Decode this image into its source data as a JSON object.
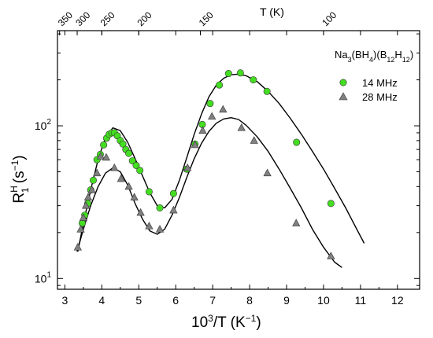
{
  "chart_data": {
    "type": "scatter",
    "title": "Na3(BH4)(B12H12)",
    "title_parts": {
      "base1": "Na",
      "sub1": "3",
      "base2": "(BH",
      "sub2": "4",
      "base3": ")(B",
      "sub3": "12",
      "base4": "H",
      "sub4": "12",
      "base5": ")"
    },
    "xlabel": "10³/T (K⁻¹)",
    "xlabel_parts": {
      "base": "10",
      "sup": "3",
      "mid": "/T  (K",
      "sup2": "−1",
      "end": ")"
    },
    "ylabel": "R^H_1 (s⁻¹)",
    "ylabel_parts": {
      "R": "R",
      "sup": "H",
      "sub": "1",
      "unit_open": " (s",
      "unit_sup": "−1",
      "unit_close": ")"
    },
    "top_axis_label": "T  (K)",
    "xlim": [
      2.8,
      12.6
    ],
    "ylim": [
      8.5,
      420
    ],
    "yscale": "log",
    "x_ticks": [
      3,
      4,
      5,
      6,
      7,
      8,
      9,
      10,
      11,
      12
    ],
    "x_tick_labels": [
      "3",
      "4",
      "5",
      "6",
      "7",
      "8",
      "9",
      "10",
      "11",
      "12"
    ],
    "y_ticks": [
      10,
      100
    ],
    "y_tick_labels": [
      {
        "base": "10",
        "exp": "1"
      },
      {
        "base": "10",
        "exp": "2"
      }
    ],
    "top_ticks_T": [
      350,
      300,
      250,
      200,
      150,
      100
    ],
    "top_tick_labels": [
      "350",
      "300",
      "250",
      "200",
      "150",
      "100"
    ],
    "legend": {
      "position": "top-right"
    },
    "series": [
      {
        "name": "14 MHz",
        "marker": "circle",
        "color": "#44dd22",
        "points": [
          [
            3.47,
            23
          ],
          [
            3.54,
            26
          ],
          [
            3.62,
            31
          ],
          [
            3.7,
            38
          ],
          [
            3.77,
            44
          ],
          [
            3.87,
            60
          ],
          [
            3.96,
            65
          ],
          [
            4.05,
            75
          ],
          [
            4.13,
            83
          ],
          [
            4.2,
            88
          ],
          [
            4.27,
            90
          ],
          [
            4.34,
            90
          ],
          [
            4.42,
            86
          ],
          [
            4.5,
            80
          ],
          [
            4.57,
            76
          ],
          [
            4.65,
            70
          ],
          [
            4.73,
            66
          ],
          [
            4.83,
            59
          ],
          [
            4.93,
            55
          ],
          [
            5.03,
            51
          ],
          [
            5.28,
            37
          ],
          [
            5.57,
            29
          ],
          [
            5.94,
            36
          ],
          [
            6.3,
            52
          ],
          [
            6.52,
            76
          ],
          [
            6.72,
            102
          ],
          [
            6.93,
            140
          ],
          [
            7.18,
            185
          ],
          [
            7.43,
            220
          ],
          [
            7.75,
            222
          ],
          [
            8.1,
            200
          ],
          [
            8.47,
            168
          ],
          [
            9.27,
            78
          ],
          [
            10.2,
            31
          ]
        ]
      },
      {
        "name": "28 MHz",
        "marker": "triangle",
        "color": "#808080",
        "points": [
          [
            3.35,
            16
          ],
          [
            3.43,
            21
          ],
          [
            3.5,
            25
          ],
          [
            3.57,
            30
          ],
          [
            3.63,
            34
          ],
          [
            3.73,
            38
          ],
          [
            3.87,
            49
          ],
          [
            3.97,
            63
          ],
          [
            4.12,
            62
          ],
          [
            4.34,
            53
          ],
          [
            4.52,
            45
          ],
          [
            4.73,
            40
          ],
          [
            4.88,
            34
          ],
          [
            5.05,
            27
          ],
          [
            5.28,
            22
          ],
          [
            5.57,
            21
          ],
          [
            5.94,
            28
          ],
          [
            6.32,
            53
          ],
          [
            6.52,
            75
          ],
          [
            6.73,
            93
          ],
          [
            6.98,
            115
          ],
          [
            7.28,
            128
          ],
          [
            7.78,
            97
          ],
          [
            8.12,
            80
          ],
          [
            8.48,
            49
          ],
          [
            9.26,
            23
          ],
          [
            10.2,
            14
          ]
        ]
      }
    ],
    "fits": [
      {
        "for": "14 MHz",
        "x": [
          3.35,
          3.5,
          3.7,
          3.9,
          4.1,
          4.3,
          4.5,
          4.7,
          4.9,
          5.1,
          5.3,
          5.5,
          5.7,
          5.9,
          6.1,
          6.3,
          6.5,
          6.7,
          6.9,
          7.1,
          7.3,
          7.5,
          7.7,
          7.9,
          8.2,
          8.5,
          8.8,
          9.1,
          9.4,
          9.7,
          10.0,
          10.3,
          10.6,
          10.9,
          11.1
        ],
        "y": [
          15,
          23,
          38,
          60,
          84,
          97,
          93,
          78,
          61,
          47,
          36.5,
          30,
          29,
          33,
          44,
          62,
          88,
          120,
          155,
          185,
          205,
          216,
          218,
          213,
          195,
          168,
          140,
          112,
          88,
          68,
          52,
          39,
          29,
          21,
          17
        ]
      },
      {
        "for": "28 MHz",
        "x": [
          3.33,
          3.5,
          3.7,
          3.9,
          4.1,
          4.3,
          4.5,
          4.7,
          4.9,
          5.1,
          5.3,
          5.5,
          5.7,
          5.9,
          6.1,
          6.3,
          6.5,
          6.7,
          6.9,
          7.1,
          7.3,
          7.5,
          7.7,
          7.9,
          8.2,
          8.5,
          8.8,
          9.1,
          9.4,
          9.7,
          10.0,
          10.3,
          10.5
        ],
        "y": [
          15,
          21,
          30,
          40,
          49,
          53,
          50,
          41,
          31,
          24.5,
          20.5,
          19.5,
          21,
          26,
          34,
          46,
          61,
          77,
          92,
          104,
          111,
          113,
          110,
          101,
          85,
          68,
          52,
          39,
          29,
          21,
          16,
          12.8,
          11.8
        ]
      }
    ]
  }
}
